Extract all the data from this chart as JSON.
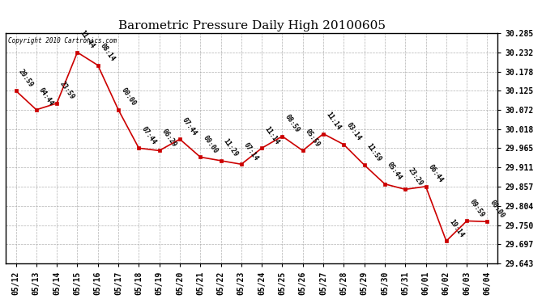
{
  "title": "Barometric Pressure Daily High 20100605",
  "copyright": "Copyright 2010 Cartronics.com",
  "dates": [
    "05/12",
    "05/13",
    "05/14",
    "05/15",
    "05/16",
    "05/17",
    "05/18",
    "05/19",
    "05/20",
    "05/21",
    "05/22",
    "05/23",
    "05/24",
    "05/25",
    "05/26",
    "05/27",
    "05/28",
    "05/29",
    "05/30",
    "05/31",
    "06/01",
    "06/02",
    "06/03",
    "06/04"
  ],
  "values": [
    30.125,
    30.072,
    30.09,
    30.232,
    30.196,
    30.072,
    29.965,
    29.958,
    29.99,
    29.94,
    29.93,
    29.92,
    29.965,
    29.998,
    29.958,
    30.005,
    29.975,
    29.918,
    29.865,
    29.85,
    29.858,
    29.706,
    29.762,
    29.76
  ],
  "time_labels": [
    "20:59",
    "04:44",
    "23:59",
    "11:44",
    "08:14",
    "00:00",
    "07:44",
    "06:29",
    "07:44",
    "00:00",
    "11:29",
    "07:14",
    "11:14",
    "08:59",
    "05:59",
    "11:14",
    "03:14",
    "11:59",
    "05:44",
    "23:29",
    "06:44",
    "19:14",
    "09:59",
    "00:00"
  ],
  "ylim_min": 29.643,
  "ylim_max": 30.285,
  "yticks": [
    30.285,
    30.232,
    30.178,
    30.125,
    30.072,
    30.018,
    29.965,
    29.911,
    29.857,
    29.804,
    29.75,
    29.697,
    29.643
  ],
  "line_color": "#cc0000",
  "marker_color": "#cc0000",
  "background_color": "#ffffff",
  "grid_color": "#aaaaaa",
  "title_fontsize": 11,
  "tick_fontsize": 7,
  "label_fontsize": 6
}
